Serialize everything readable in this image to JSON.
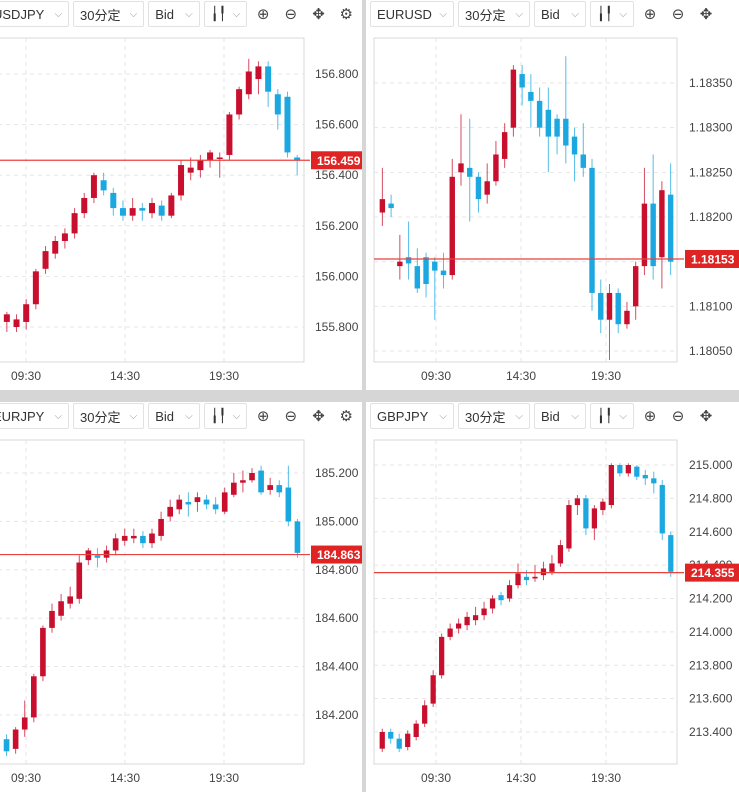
{
  "toolbar": {
    "timeframe": "30分定",
    "price_type": "Bid",
    "chart_type_icon": "candlestick-icon",
    "zoom_in_icon": "zoom-in-icon",
    "zoom_out_icon": "zoom-out-icon",
    "move_icon": "move-icon"
  },
  "colors": {
    "up": "#c8102e",
    "down": "#1ba8e0",
    "price_line": "#e8423f",
    "grid": "#e5e5e5"
  },
  "chart_data": [
    {
      "type": "candlestick",
      "symbol": "USDJPY",
      "current_price": "156.459",
      "y_ticks": [
        "156.800",
        "156.600",
        "156.400",
        "156.200",
        "156.000",
        "155.800"
      ],
      "x_ticks": [
        "09:30",
        "14:30",
        "19:30"
      ],
      "candles": [
        [
          155.82,
          155.85,
          155.78,
          155.86
        ],
        [
          155.8,
          155.83,
          155.78,
          155.85
        ],
        [
          155.82,
          155.89,
          155.79,
          155.91
        ],
        [
          155.89,
          156.02,
          155.87,
          156.03
        ],
        [
          156.03,
          156.1,
          156.01,
          156.12
        ],
        [
          156.09,
          156.14,
          156.07,
          156.16
        ],
        [
          156.14,
          156.17,
          156.11,
          156.19
        ],
        [
          156.17,
          156.25,
          156.15,
          156.27
        ],
        [
          156.25,
          156.31,
          156.23,
          156.33
        ],
        [
          156.31,
          156.4,
          156.29,
          156.41
        ],
        [
          156.38,
          156.34,
          156.32,
          156.41
        ],
        [
          156.33,
          156.27,
          156.24,
          156.35
        ],
        [
          156.27,
          156.24,
          156.22,
          156.3
        ],
        [
          156.24,
          156.27,
          156.22,
          156.31
        ],
        [
          156.27,
          156.26,
          156.22,
          156.29
        ],
        [
          156.25,
          156.29,
          156.23,
          156.31
        ],
        [
          156.28,
          156.24,
          156.22,
          156.3
        ],
        [
          156.24,
          156.32,
          156.23,
          156.33
        ],
        [
          156.32,
          156.44,
          156.3,
          156.46
        ],
        [
          156.41,
          156.43,
          156.38,
          156.47
        ],
        [
          156.42,
          156.46,
          156.39,
          156.48
        ],
        [
          156.46,
          156.49,
          156.43,
          156.5
        ],
        [
          156.47,
          156.47,
          156.39,
          156.49
        ],
        [
          156.48,
          156.64,
          156.46,
          156.65
        ],
        [
          156.64,
          156.74,
          156.62,
          156.75
        ],
        [
          156.72,
          156.81,
          156.7,
          156.86
        ],
        [
          156.78,
          156.83,
          156.72,
          156.85
        ],
        [
          156.83,
          156.73,
          156.67,
          156.85
        ],
        [
          156.72,
          156.64,
          156.58,
          156.74
        ],
        [
          156.71,
          156.49,
          156.47,
          156.73
        ],
        [
          156.47,
          156.46,
          156.4,
          156.48
        ]
      ]
    },
    {
      "type": "candlestick",
      "symbol": "EURUSD",
      "current_price": "1.18153",
      "y_ticks": [
        "1.18350",
        "1.18300",
        "1.18250",
        "1.18200",
        "1.18150",
        "1.18100",
        "1.18050"
      ],
      "x_ticks": [
        "09:30",
        "14:30",
        "19:30"
      ],
      "candles": [
        [
          1.18205,
          1.1822,
          1.1819,
          1.18255
        ],
        [
          1.18215,
          1.1821,
          1.182,
          1.18225
        ],
        [
          1.18145,
          1.1815,
          1.1813,
          1.1818
        ],
        [
          1.18155,
          1.18148,
          1.1813,
          1.18195
        ],
        [
          1.18145,
          1.1812,
          1.18115,
          1.18165
        ],
        [
          1.18155,
          1.18125,
          1.1811,
          1.1816
        ],
        [
          1.1815,
          1.1814,
          1.18085,
          1.18155
        ],
        [
          1.1814,
          1.18135,
          1.1812,
          1.1816
        ],
        [
          1.18135,
          1.18245,
          1.1813,
          1.18265
        ],
        [
          1.1825,
          1.1826,
          1.18235,
          1.18315
        ],
        [
          1.18255,
          1.18245,
          1.18195,
          1.1831
        ],
        [
          1.18245,
          1.1822,
          1.18205,
          1.1825
        ],
        [
          1.18225,
          1.1824,
          1.18215,
          1.1826
        ],
        [
          1.1824,
          1.1827,
          1.18235,
          1.18285
        ],
        [
          1.18265,
          1.18295,
          1.18255,
          1.18305
        ],
        [
          1.183,
          1.18365,
          1.1829,
          1.1837
        ],
        [
          1.1836,
          1.18345,
          1.18325,
          1.1837
        ],
        [
          1.1834,
          1.1833,
          1.183,
          1.1836
        ],
        [
          1.1833,
          1.183,
          1.1829,
          1.18345
        ],
        [
          1.1832,
          1.1829,
          1.1825,
          1.18345
        ],
        [
          1.1831,
          1.1829,
          1.1827,
          1.18315
        ],
        [
          1.1831,
          1.1828,
          1.1826,
          1.1838
        ],
        [
          1.1829,
          1.1827,
          1.1824,
          1.183
        ],
        [
          1.1827,
          1.18255,
          1.18245,
          1.18305
        ],
        [
          1.18255,
          1.18115,
          1.18095,
          1.18265
        ],
        [
          1.18115,
          1.18085,
          1.1807,
          1.1813
        ],
        [
          1.18085,
          1.18115,
          1.1804,
          1.18125
        ],
        [
          1.18115,
          1.1808,
          1.1807,
          1.1812
        ],
        [
          1.1808,
          1.18095,
          1.18075,
          1.18105
        ],
        [
          1.181,
          1.18145,
          1.18085,
          1.1815
        ],
        [
          1.18145,
          1.18215,
          1.18135,
          1.18255
        ],
        [
          1.18215,
          1.18145,
          1.1813,
          1.1827
        ],
        [
          1.18155,
          1.1823,
          1.1812,
          1.1824
        ],
        [
          1.18225,
          1.1815,
          1.18135,
          1.1826
        ]
      ]
    },
    {
      "type": "candlestick",
      "symbol": "EURJPY",
      "current_price": "184.863",
      "y_ticks": [
        "185.200",
        "185.000",
        "184.800",
        "184.600",
        "184.400",
        "184.200"
      ],
      "x_ticks": [
        "09:30",
        "14:30",
        "19:30"
      ],
      "candles": [
        [
          184.1,
          184.05,
          184.03,
          184.12
        ],
        [
          184.06,
          184.14,
          184.04,
          184.15
        ],
        [
          184.14,
          184.19,
          184.11,
          184.26
        ],
        [
          184.19,
          184.36,
          184.17,
          184.37
        ],
        [
          184.36,
          184.56,
          184.34,
          184.57
        ],
        [
          184.56,
          184.63,
          184.54,
          184.66
        ],
        [
          184.61,
          184.67,
          184.59,
          184.7
        ],
        [
          184.66,
          184.69,
          184.64,
          184.73
        ],
        [
          184.68,
          184.83,
          184.66,
          184.86
        ],
        [
          184.84,
          184.88,
          184.82,
          184.89
        ],
        [
          184.86,
          184.85,
          184.81,
          184.89
        ],
        [
          184.85,
          184.88,
          184.83,
          184.9
        ],
        [
          184.88,
          184.93,
          184.86,
          184.95
        ],
        [
          184.92,
          184.94,
          184.9,
          184.97
        ],
        [
          184.93,
          184.94,
          184.91,
          184.97
        ],
        [
          184.94,
          184.91,
          184.89,
          184.96
        ],
        [
          184.91,
          184.95,
          184.89,
          184.97
        ],
        [
          184.94,
          185.01,
          184.92,
          185.04
        ],
        [
          185.02,
          185.06,
          185.0,
          185.09
        ],
        [
          185.05,
          185.09,
          185.03,
          185.11
        ],
        [
          185.08,
          185.07,
          185.02,
          185.12
        ],
        [
          185.08,
          185.1,
          185.04,
          185.12
        ],
        [
          185.09,
          185.07,
          185.05,
          185.11
        ],
        [
          185.07,
          185.05,
          185.03,
          185.1
        ],
        [
          185.04,
          185.12,
          185.03,
          185.14
        ],
        [
          185.11,
          185.16,
          185.1,
          185.2
        ],
        [
          185.16,
          185.17,
          185.12,
          185.21
        ],
        [
          185.17,
          185.2,
          185.16,
          185.22
        ],
        [
          185.21,
          185.12,
          185.11,
          185.23
        ],
        [
          185.13,
          185.15,
          185.11,
          185.18
        ],
        [
          185.15,
          185.12,
          185.1,
          185.17
        ],
        [
          185.14,
          185.0,
          184.98,
          185.23
        ],
        [
          185.0,
          184.87,
          184.85,
          185.01
        ]
      ]
    },
    {
      "type": "candlestick",
      "symbol": "GBPJPY",
      "current_price": "214.355",
      "y_ticks": [
        "215.000",
        "214.800",
        "214.600",
        "214.400",
        "214.200",
        "214.000",
        "213.800",
        "213.600",
        "213.400"
      ],
      "x_ticks": [
        "09:30",
        "14:30",
        "19:30"
      ],
      "candles": [
        [
          213.3,
          213.4,
          213.28,
          213.42
        ],
        [
          213.4,
          213.36,
          213.33,
          213.42
        ],
        [
          213.36,
          213.3,
          213.28,
          213.39
        ],
        [
          213.31,
          213.39,
          213.29,
          213.41
        ],
        [
          213.37,
          213.45,
          213.35,
          213.47
        ],
        [
          213.45,
          213.56,
          213.43,
          213.59
        ],
        [
          213.57,
          213.74,
          213.55,
          213.77
        ],
        [
          213.74,
          213.97,
          213.72,
          213.99
        ],
        [
          213.97,
          214.02,
          213.95,
          214.05
        ],
        [
          214.02,
          214.05,
          213.99,
          214.08
        ],
        [
          214.04,
          214.09,
          214.01,
          214.12
        ],
        [
          214.07,
          214.1,
          214.04,
          214.15
        ],
        [
          214.1,
          214.14,
          214.07,
          214.18
        ],
        [
          214.14,
          214.2,
          214.11,
          214.22
        ],
        [
          214.22,
          214.19,
          214.16,
          214.24
        ],
        [
          214.2,
          214.28,
          214.18,
          214.31
        ],
        [
          214.28,
          214.35,
          214.26,
          214.41
        ],
        [
          214.33,
          214.31,
          214.28,
          214.37
        ],
        [
          214.32,
          214.33,
          214.3,
          214.4
        ],
        [
          214.34,
          214.38,
          214.31,
          214.42
        ],
        [
          214.36,
          214.41,
          214.34,
          214.46
        ],
        [
          214.41,
          214.52,
          214.39,
          214.55
        ],
        [
          214.5,
          214.76,
          214.48,
          214.79
        ],
        [
          214.76,
          214.8,
          214.7,
          214.82
        ],
        [
          214.8,
          214.62,
          214.58,
          214.82
        ],
        [
          214.62,
          214.74,
          214.55,
          214.76
        ],
        [
          214.73,
          214.78,
          214.7,
          214.8
        ],
        [
          214.76,
          215.0,
          214.74,
          215.01
        ],
        [
          215.0,
          214.95,
          214.93,
          215.01
        ],
        [
          214.95,
          215.0,
          214.93,
          215.01
        ],
        [
          214.99,
          214.93,
          214.91,
          215.0
        ],
        [
          214.94,
          214.92,
          214.88,
          214.97
        ],
        [
          214.92,
          214.89,
          214.83,
          214.96
        ],
        [
          214.88,
          214.59,
          214.55,
          214.91
        ],
        [
          214.58,
          214.36,
          214.33,
          214.6
        ]
      ]
    }
  ]
}
